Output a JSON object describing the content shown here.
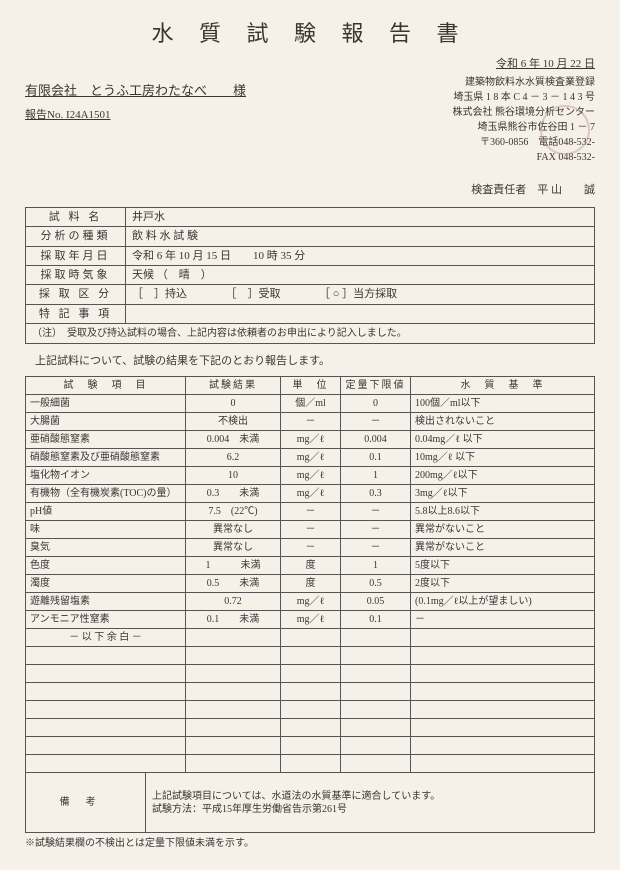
{
  "title": "水 質 試 験 報 告 書",
  "date": "令和 6 年 10 月 22 日",
  "recipient": "有限会社　とうふ工房わたなべ　　様",
  "report_no": "報告No. I24A1501",
  "issuer": {
    "reg": "建築物飲料水水質検査業登録",
    "reg_no": "埼玉県 1 8 本 C 4 － 3 － 1 4 3 号",
    "company": "株式会社 熊谷環境分析センター",
    "addr1": "埼玉県熊谷市佐谷田 1 － 7",
    "addr2": "〒360-0856　電話048-532-",
    "addr3": "FAX 048-532-"
  },
  "inspector": "検査責任者　平 山　　誠",
  "info": [
    {
      "label": "試 料 名",
      "value": "井戸水"
    },
    {
      "label": "分析の種類",
      "value": "飲 料 水 試 験"
    },
    {
      "label": "採取年月日",
      "value": "令和 6 年 10 月 15 日　　10 時 35 分"
    },
    {
      "label": "採取時気象",
      "value": "天候 （　晴　）"
    },
    {
      "label": "採 取 区 分",
      "value": "［　］持込　　　　［　］受取　　　　［ ○ ］当方採取"
    },
    {
      "label": "特 記 事 項",
      "value": ""
    }
  ],
  "info_note": "（注）　受取及び持込試料の場合、上記内容は依頼者のお申出により記入しました。",
  "intro": "上記試料について、試験の結果を下記のとおり報告します。",
  "headers": {
    "item": "試　験　項　目",
    "res": "試験結果",
    "unit": "単　位",
    "limit": "定量下限値",
    "std": "水　質　基　準"
  },
  "rows": [
    {
      "item": "一般細菌",
      "res": "0",
      "unit": "個／ml",
      "limit": "0",
      "std": "100個／ml以下"
    },
    {
      "item": "大腸菌",
      "res": "不検出",
      "unit": "－",
      "limit": "－",
      "std": "検出されないこと"
    },
    {
      "item": "亜硝酸態窒素",
      "res": "0.004　未満",
      "unit": "mg／ℓ",
      "limit": "0.004",
      "std": "0.04mg／ℓ 以下"
    },
    {
      "item": "硝酸態窒素及び亜硝酸態窒素",
      "res": "6.2",
      "unit": "mg／ℓ",
      "limit": "0.1",
      "std": "10mg／ℓ 以下"
    },
    {
      "item": "塩化物イオン",
      "res": "10",
      "unit": "mg／ℓ",
      "limit": "1",
      "std": "200mg／ℓ以下"
    },
    {
      "item": "有機物（全有機炭素(TOC)の量）",
      "res": "0.3　　未満",
      "unit": "mg／ℓ",
      "limit": "0.3",
      "std": "3mg／ℓ以下"
    },
    {
      "item": "pH値",
      "res": "7.5　(22℃)",
      "unit": "－",
      "limit": "－",
      "std": "5.8以上8.6以下"
    },
    {
      "item": "味",
      "res": "異常なし",
      "unit": "－",
      "limit": "－",
      "std": "異常がないこと"
    },
    {
      "item": "臭気",
      "res": "異常なし",
      "unit": "－",
      "limit": "－",
      "std": "異常がないこと"
    },
    {
      "item": "色度",
      "res": "1　　　未満",
      "unit": "度",
      "limit": "1",
      "std": "5度以下"
    },
    {
      "item": "濁度",
      "res": "0.5　　未満",
      "unit": "度",
      "limit": "0.5",
      "std": "2度以下"
    },
    {
      "item": "遊離残留塩素",
      "res": "0.72",
      "unit": "mg／ℓ",
      "limit": "0.05",
      "std": "(0.1mg／ℓ以上が望ましい)"
    },
    {
      "item": "アンモニア性窒素",
      "res": "0.1　　未満",
      "unit": "mg／ℓ",
      "limit": "0.1",
      "std": "－"
    }
  ],
  "blank_text": "－ 以 下 余 白 －",
  "blank_rows": 7,
  "remarks_label": "備考",
  "remarks": "上記試験項目については、水道法の水質基準に適合しています。\n試験方法：平成15年厚生労働省告示第261号",
  "footnote": "※試験結果欄の不検出とは定量下限値未満を示す。"
}
